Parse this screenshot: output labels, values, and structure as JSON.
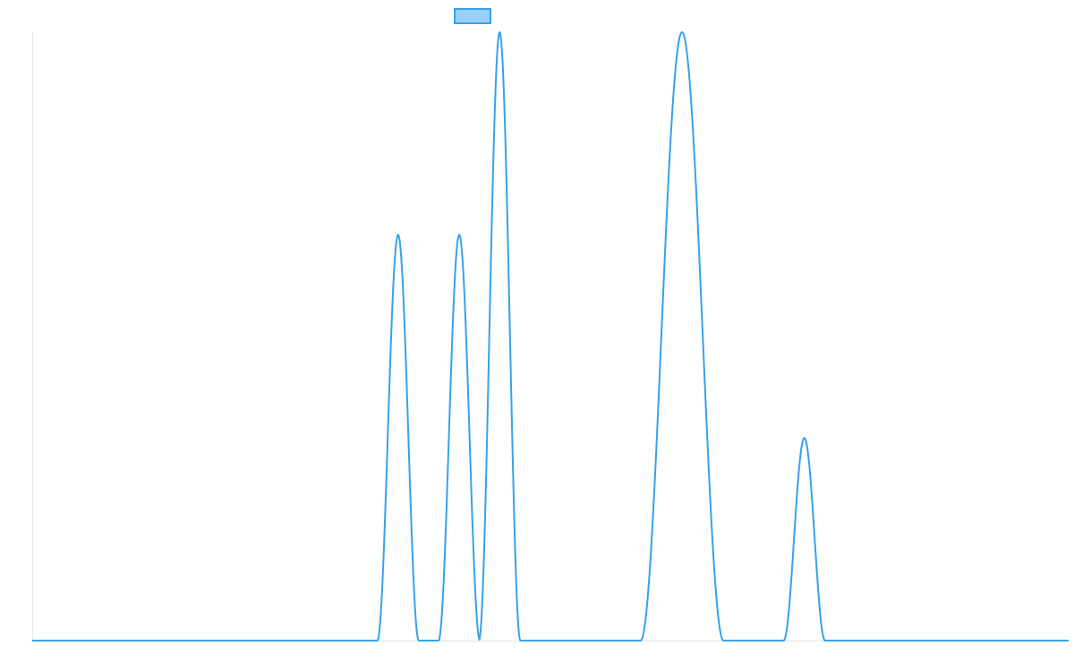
{
  "chart_data": {
    "type": "line",
    "title": "",
    "xlabel": "",
    "ylabel": "",
    "grid": false,
    "legend": "top-center",
    "x_range": [
      0,
      100
    ],
    "y_range": [
      0,
      1
    ],
    "series": [
      {
        "name": "",
        "color": "#36a2eb",
        "fill": "#9ad0f5",
        "line_width": 2,
        "baseline": 0,
        "peaks": [
          {
            "center": 35.3,
            "height": 0.667,
            "half_width": 2.0
          },
          {
            "center": 41.2,
            "height": 0.667,
            "half_width": 2.0
          },
          {
            "center": 45.1,
            "height": 1.0,
            "half_width": 2.0
          },
          {
            "center": 62.7,
            "height": 1.0,
            "half_width": 4.0
          },
          {
            "center": 74.5,
            "height": 0.333,
            "half_width": 2.0
          }
        ]
      }
    ]
  }
}
